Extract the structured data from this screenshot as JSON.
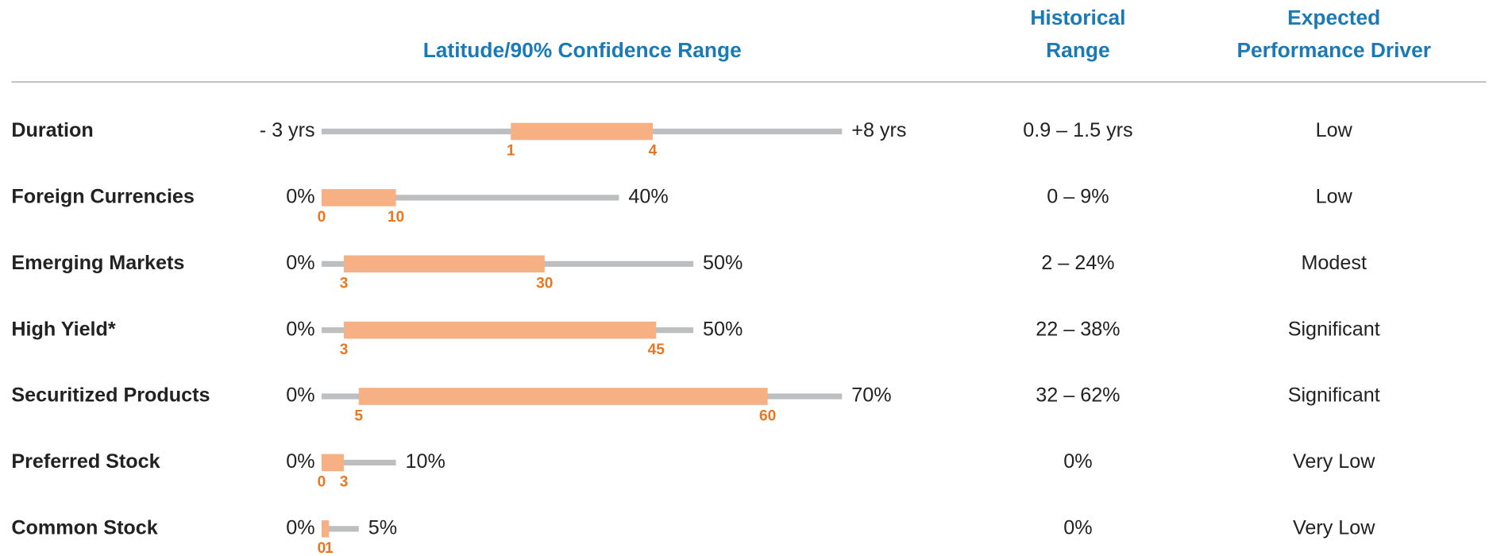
{
  "header": {
    "latitude": "Latitude/90% Confidence Range",
    "historical": [
      "Historical",
      "Range"
    ],
    "driver": [
      "Expected",
      "Performance Driver"
    ]
  },
  "rows": [
    {
      "label": "Duration",
      "min": {
        "value": -3,
        "label": "- 3 yrs"
      },
      "max": {
        "value": 8,
        "label": "+8 yrs"
      },
      "low": 1,
      "high": 4,
      "historical": "0.9 – 1.5 yrs",
      "driver": "Low"
    },
    {
      "label": "Foreign Currencies",
      "min": {
        "value": 0,
        "label": "0%"
      },
      "max": {
        "value": 40,
        "label": "40%"
      },
      "low": 0,
      "high": 10,
      "historical": "0 – 9%",
      "driver": "Low"
    },
    {
      "label": "Emerging Markets",
      "min": {
        "value": 0,
        "label": "0%"
      },
      "max": {
        "value": 50,
        "label": "50%"
      },
      "low": 3,
      "high": 30,
      "historical": "2 – 24%",
      "driver": "Modest"
    },
    {
      "label": "High Yield*",
      "min": {
        "value": 0,
        "label": "0%"
      },
      "max": {
        "value": 50,
        "label": "50%"
      },
      "low": 3,
      "high": 45,
      "historical": "22 – 38%",
      "driver": "Significant"
    },
    {
      "label": "Securitized Products",
      "min": {
        "value": 0,
        "label": "0%"
      },
      "max": {
        "value": 70,
        "label": "70%"
      },
      "low": 5,
      "high": 60,
      "historical": "32 – 62%",
      "driver": "Significant"
    },
    {
      "label": "Preferred Stock",
      "min": {
        "value": 0,
        "label": "0%"
      },
      "max": {
        "value": 10,
        "label": "10%"
      },
      "low": 0,
      "high": 3,
      "historical": "0%",
      "driver": "Very Low"
    },
    {
      "label": "Common Stock",
      "min": {
        "value": 0,
        "label": "0%"
      },
      "max": {
        "value": 5,
        "label": "5%"
      },
      "low": 0,
      "high": 1,
      "historical": "0%",
      "driver": "Very Low"
    }
  ]
}
